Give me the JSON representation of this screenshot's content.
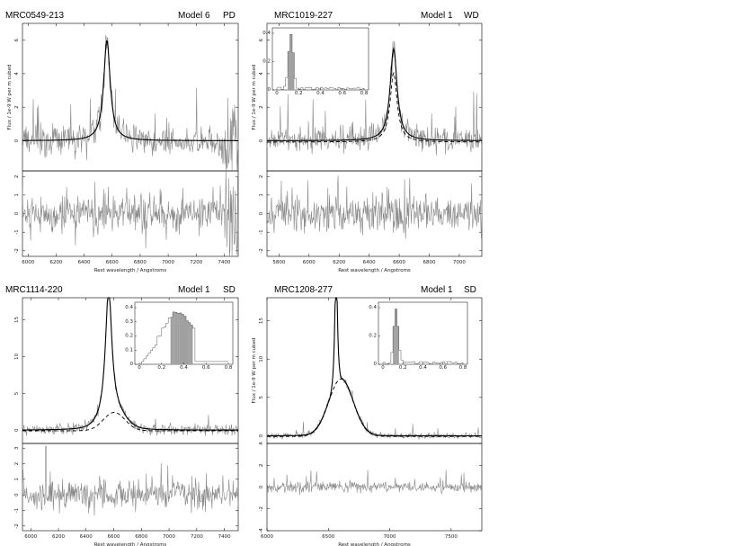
{
  "colors": {
    "data": "#888888",
    "model": "#000000",
    "hist": "#a0a0a0"
  },
  "chart_data": [
    {
      "type": "line",
      "name_label": "MRC0549-213",
      "model_label": "Model 6",
      "class_label": "PD",
      "xlabel": "Rest wavelength / Angstroms",
      "ylabel": "Flux / 1e-9 W per m cubed",
      "xlim": [
        5960,
        7500
      ],
      "ylim_top": [
        -1.8,
        7.0
      ],
      "ylim_bottom": [
        -2.3,
        2.3
      ],
      "x_ticks": [
        "6000",
        "6200",
        "6400",
        "6600",
        "6800",
        "7000",
        "7200",
        "7400"
      ],
      "y_ticks_top": [
        "0",
        "2",
        "4",
        "6"
      ],
      "y_ticks_bottom": [
        "-2",
        "-1",
        "0",
        "1",
        "2"
      ],
      "line_center": 6563,
      "peak": 6.0,
      "broad_amp": 0,
      "noise_top": 0.45,
      "noise_bottom": 0.55,
      "dashed": false,
      "inset": null
    },
    {
      "type": "line",
      "name_label": "MRC1019-227",
      "model_label": "Model 1",
      "class_label": "WD",
      "xlabel": "Rest wavelength / Angstroms",
      "ylabel": "Flux / 1e-9 W per m cubed",
      "xlim": [
        5720,
        7150
      ],
      "ylim_top": [
        -1.8,
        7.0
      ],
      "ylim_bottom": [
        -2.3,
        2.3
      ],
      "x_ticks": [
        "5800",
        "6000",
        "6200",
        "6400",
        "6600",
        "6800",
        "7000"
      ],
      "y_ticks_top": [
        "0",
        "2",
        "4",
        "6"
      ],
      "y_ticks_bottom": [
        "-2",
        "-1",
        "0",
        "1",
        "2"
      ],
      "line_center": 6563,
      "peak": 5.5,
      "broad_amp": 0,
      "noise_top": 0.35,
      "noise_bottom": 0.5,
      "dashed": true,
      "inset": {
        "ticks": [
          "0",
          "0.2",
          "0.4",
          "0.6",
          "0.8"
        ],
        "y_ticks": [
          "0",
          "0.2",
          "0.4"
        ]
      }
    },
    {
      "type": "line",
      "name_label": "MRC1114-220",
      "model_label": "Model 1",
      "class_label": "SD",
      "xlabel": "Rest wavelength / Angstroms",
      "ylabel": "",
      "xlim": [
        5940,
        7500
      ],
      "ylim_top": [
        -1.8,
        18.0
      ],
      "ylim_bottom": [
        -2.3,
        3.3
      ],
      "x_ticks": [
        "6000",
        "6200",
        "6400",
        "6600",
        "6800",
        "7000",
        "7200",
        "7400"
      ],
      "y_ticks_top": [
        "0",
        "5",
        "10",
        "15"
      ],
      "y_ticks_bottom": [
        "-2",
        "-1",
        "0",
        "1",
        "2",
        "3"
      ],
      "line_center": 6563,
      "peak": 17.5,
      "broad_amp": 2.5,
      "noise_top": 0.35,
      "noise_bottom": 0.45,
      "dashed": true,
      "inset": {
        "ticks": [
          "0",
          "0.2",
          "0.4",
          "0.6",
          "0.8"
        ],
        "y_ticks": [
          "0",
          "0.1",
          "0.2",
          "0.3",
          "0.4"
        ]
      }
    },
    {
      "type": "line",
      "name_label": "MRC1208-277",
      "model_label": "Model 1",
      "class_label": "SD",
      "xlabel": "Rest wavelength / Angstroms",
      "ylabel": "Flux / 1e-9 W per m cubed",
      "xlim": [
        6000,
        7750
      ],
      "ylim_top": [
        -1.0,
        18.0
      ],
      "ylim_bottom": [
        -4.0,
        4.0
      ],
      "x_ticks": [
        "6000",
        "6500",
        "7000",
        "7500"
      ],
      "y_ticks_top": [
        "0",
        "5",
        "10",
        "15"
      ],
      "y_ticks_bottom": [
        "-4",
        "-2",
        "0",
        "2",
        "4"
      ],
      "line_center": 6563,
      "peak": 18.0,
      "broad_amp": 7.5,
      "noise_top": 0.2,
      "noise_bottom": 0.25,
      "dashed": true,
      "inset": {
        "ticks": [
          "0",
          "0.2",
          "0.4",
          "0.6",
          "0.8"
        ],
        "y_ticks": [
          "0",
          "0.2",
          "0.4"
        ]
      }
    }
  ]
}
